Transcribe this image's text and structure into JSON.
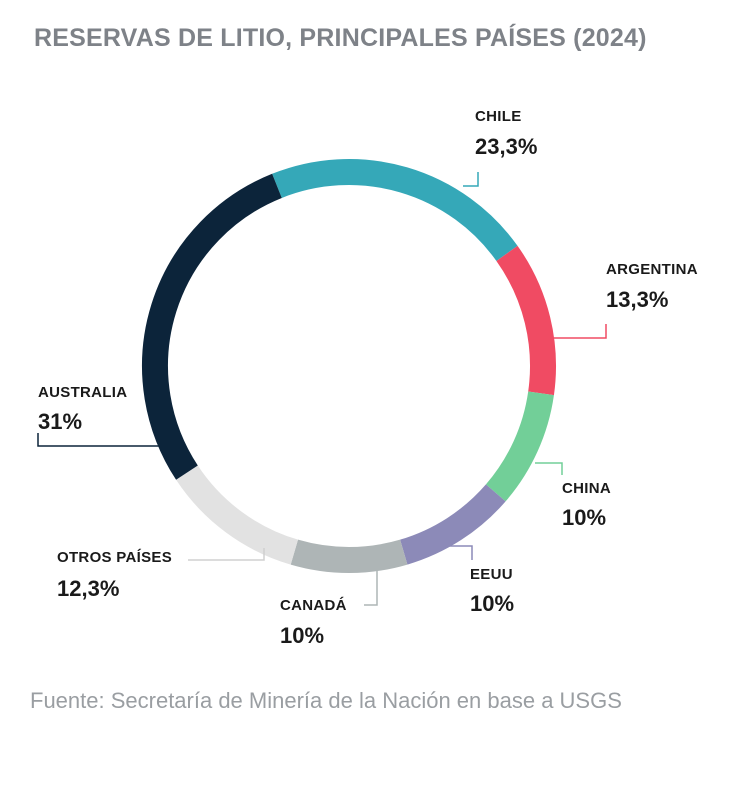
{
  "title": "RESERVAS DE LITIO, PRINCIPALES PAÍSES (2024)",
  "source": "Fuente: Secretaría de Minería de la Nación en base a USGS",
  "chart_data": {
    "type": "pie",
    "style": "donut",
    "title": "RESERVAS DE LITIO, PRINCIPALES PAÍSES (2024)",
    "unit": "%",
    "slices": [
      {
        "name": "CHILE",
        "label": "23,3%",
        "value": 23.3,
        "color": "#35a8b8"
      },
      {
        "name": "ARGENTINA",
        "label": "13,3%",
        "value": 13.3,
        "color": "#f04b63"
      },
      {
        "name": "CHINA",
        "label": "10%",
        "value": 10,
        "color": "#72cf98"
      },
      {
        "name": "EEUU",
        "label": "10%",
        "value": 10,
        "color": "#8c8ab8"
      },
      {
        "name": "CANADÁ",
        "label": "10%",
        "value": 10,
        "color": "#aeb5b6"
      },
      {
        "name": "OTROS PAÍSES",
        "label": "12,3%",
        "value": 12.3,
        "color": "#e2e2e2"
      },
      {
        "name": "AUSTRALIA",
        "label": "31%",
        "value": 31,
        "color": "#0c243a"
      }
    ]
  }
}
